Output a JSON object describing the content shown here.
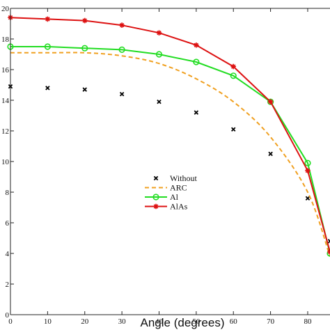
{
  "chart_data": {
    "type": "line",
    "xlabel": "Angle (degrees)",
    "ylabel": "",
    "xlim": [
      0,
      86
    ],
    "ylim": [
      0,
      20
    ],
    "xticks": [
      0,
      10,
      20,
      30,
      40,
      50,
      60,
      70,
      80
    ],
    "yticks": [
      0,
      2,
      4,
      6,
      8,
      10,
      12,
      14,
      16,
      18,
      20
    ],
    "xtick_labels": [
      "0",
      "10",
      "20",
      "30",
      "40",
      "50",
      "60",
      "70",
      "80"
    ],
    "ytick_labels": [
      "0",
      "2",
      "4",
      "6",
      "8",
      "10",
      "12",
      "14",
      "16",
      "18",
      "20"
    ],
    "grid": false,
    "legend_position": "center",
    "series": [
      {
        "name": "Without",
        "style": "markers",
        "marker": "x",
        "color": "#000000",
        "x": [
          0,
          10,
          20,
          30,
          40,
          50,
          60,
          70,
          80,
          86
        ],
        "y": [
          14.9,
          14.8,
          14.7,
          14.4,
          13.9,
          13.2,
          12.1,
          10.5,
          7.6,
          4.8
        ]
      },
      {
        "name": "ARC",
        "style": "dashed",
        "marker": "none",
        "color": "#f0a020",
        "x": [
          0,
          10,
          20,
          30,
          40,
          50,
          60,
          70,
          80,
          86
        ],
        "y": [
          17.1,
          17.1,
          17.1,
          16.9,
          16.4,
          15.4,
          13.9,
          11.6,
          8.0,
          3.8
        ]
      },
      {
        "name": "Al",
        "style": "solid",
        "marker": "circle",
        "color": "#22dd22",
        "x": [
          0,
          10,
          20,
          30,
          40,
          50,
          60,
          70,
          80,
          86
        ],
        "y": [
          17.5,
          17.5,
          17.4,
          17.3,
          17.0,
          16.5,
          15.6,
          13.9,
          9.9,
          4.0
        ]
      },
      {
        "name": "AlAs",
        "style": "solid",
        "marker": "star",
        "color": "#dd1111",
        "x": [
          0,
          10,
          20,
          30,
          40,
          50,
          60,
          70,
          80,
          86
        ],
        "y": [
          19.4,
          19.3,
          19.2,
          18.9,
          18.4,
          17.6,
          16.2,
          13.9,
          9.4,
          4.1
        ]
      }
    ]
  }
}
